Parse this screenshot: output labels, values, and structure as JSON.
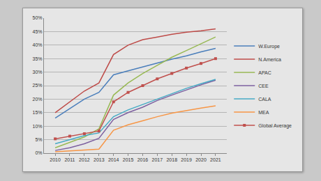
{
  "chart_data": {
    "type": "line",
    "categories": [
      "2010",
      "2011",
      "2012",
      "2013",
      "2014",
      "2015",
      "2016",
      "2017",
      "2018",
      "2019",
      "2020",
      "2021"
    ],
    "series": [
      {
        "name": "W.Europe",
        "color": "#4a7ebb",
        "values": [
          13,
          16.5,
          20,
          22.5,
          29,
          30.5,
          32,
          33.5,
          34.8,
          36,
          37.5,
          38.8
        ]
      },
      {
        "name": "N.America",
        "color": "#be4b48",
        "values": [
          15,
          19,
          23,
          26,
          36.5,
          40,
          42,
          43,
          44,
          44.8,
          45.3,
          46
        ]
      },
      {
        "name": "APAC",
        "color": "#98b954",
        "values": [
          2,
          4,
          6,
          9,
          21.5,
          26,
          29.5,
          32.5,
          35.5,
          38,
          40.5,
          43
        ]
      },
      {
        "name": "CEE",
        "color": "#7d60a0",
        "values": [
          1,
          2,
          3.5,
          5.5,
          12.5,
          15,
          17,
          19.5,
          21.5,
          23.5,
          25.3,
          27
        ]
      },
      {
        "name": "CALA",
        "color": "#46aac5",
        "values": [
          3.5,
          5,
          6.5,
          7.5,
          13.5,
          16,
          18,
          20,
          22,
          24,
          25.7,
          27.3
        ]
      },
      {
        "name": "MEA",
        "color": "#f79646",
        "values": [
          0.5,
          0.8,
          1.2,
          1.5,
          8.5,
          10.5,
          12,
          13.5,
          14.8,
          15.8,
          16.7,
          17.5
        ]
      },
      {
        "name": "Global Average",
        "color": "#c0504d",
        "marker": "square",
        "values": [
          5.3,
          6.3,
          7.2,
          8.2,
          19,
          22.5,
          25,
          27.5,
          29.5,
          31.5,
          33.2,
          35
        ]
      }
    ],
    "ylim": [
      0,
      50
    ],
    "yticks": [
      {
        "value": 0,
        "label": "0%"
      },
      {
        "value": 5,
        "label": "5%"
      },
      {
        "value": 10,
        "label": "10%"
      },
      {
        "value": 15,
        "label": "15%"
      },
      {
        "value": 20,
        "label": "20%"
      },
      {
        "value": 25,
        "label": "25%"
      },
      {
        "value": 30,
        "label": "30%"
      },
      {
        "value": 35,
        "label": "35%"
      },
      {
        "value": 40,
        "label": "40%"
      },
      {
        "value": 45,
        "label": "45%"
      },
      {
        "value": 50,
        "label": "50%"
      }
    ],
    "grid": true,
    "legend": "right"
  }
}
